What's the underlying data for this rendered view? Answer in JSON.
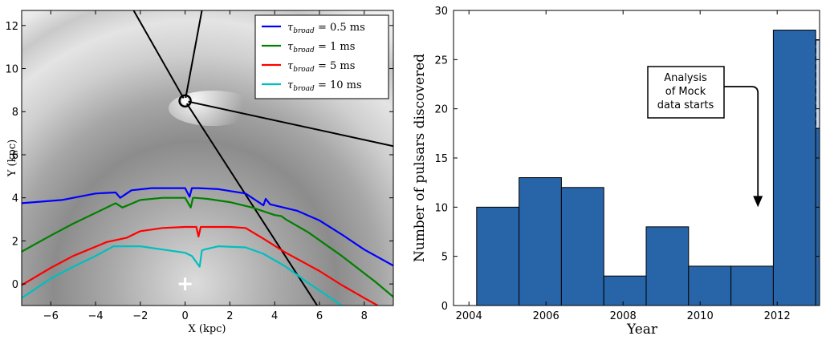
{
  "chart_data": [
    {
      "type": "line",
      "xlabel": "X (kpc)",
      "ylabel": "Y (kpc)",
      "xlim": [
        -7.3,
        9.3
      ],
      "ylim": [
        -1,
        12.7
      ],
      "xticks": [
        -6,
        -4,
        -2,
        0,
        2,
        4,
        6,
        8
      ],
      "yticks": [
        0,
        2,
        4,
        6,
        8,
        10,
        12
      ],
      "legend_position": "top-right",
      "background": "greyscale Galactic electron-density map",
      "sun_marker": {
        "x": 0,
        "y": 8.5
      },
      "galactic_centre_marker": {
        "x": 0,
        "y": 0
      },
      "sightlines": [
        {
          "from": [
            0,
            8.5
          ],
          "to": [
            -2.3,
            12.7
          ]
        },
        {
          "from": [
            0,
            8.5
          ],
          "to": [
            0.75,
            12.7
          ]
        },
        {
          "from": [
            0,
            8.5
          ],
          "to": [
            9.3,
            6.4
          ]
        },
        {
          "from": [
            0,
            8.5
          ],
          "to": [
            5.9,
            -1
          ]
        }
      ],
      "series": [
        {
          "name": "0.5 ms",
          "color": "#0000ff",
          "x": [
            -7.3,
            -5.5,
            -4.0,
            -3.1,
            -2.9,
            -2.4,
            -1.5,
            0.0,
            0.2,
            0.3,
            0.4,
            0.6,
            1.5,
            2.7,
            3.5,
            3.6,
            3.8,
            5.0,
            6.0,
            7.0,
            8.0,
            9.3
          ],
          "y": [
            3.75,
            3.9,
            4.2,
            4.25,
            4.0,
            4.35,
            4.45,
            4.45,
            4.05,
            4.45,
            4.45,
            4.45,
            4.4,
            4.2,
            3.65,
            3.95,
            3.7,
            3.4,
            2.95,
            2.3,
            1.6,
            0.85
          ]
        },
        {
          "name": "1 ms",
          "color": "#008000",
          "x": [
            -7.3,
            -6.0,
            -5.0,
            -3.5,
            -3.1,
            -2.8,
            -2.0,
            -1.0,
            0.0,
            0.25,
            0.35,
            0.45,
            1.0,
            2.0,
            3.0,
            4.0,
            4.3,
            4.5,
            5.5,
            7.0,
            8.5,
            9.3
          ],
          "y": [
            1.5,
            2.25,
            2.8,
            3.55,
            3.75,
            3.55,
            3.9,
            4.0,
            4.0,
            3.55,
            4.0,
            4.0,
            3.95,
            3.8,
            3.55,
            3.2,
            3.15,
            3.0,
            2.4,
            1.3,
            0.1,
            -0.6
          ]
        },
        {
          "name": "5 ms",
          "color": "#ff0000",
          "x": [
            -7.3,
            -6.0,
            -5.0,
            -3.5,
            -2.6,
            -2.0,
            -1.0,
            0.0,
            0.5,
            0.6,
            0.7,
            1.0,
            2.0,
            2.7,
            3.5,
            4.5,
            6.0,
            7.0,
            8.0,
            8.6
          ],
          "y": [
            -0.05,
            0.75,
            1.3,
            1.95,
            2.15,
            2.45,
            2.6,
            2.65,
            2.65,
            2.2,
            2.65,
            2.65,
            2.65,
            2.6,
            2.1,
            1.45,
            0.6,
            -0.05,
            -0.65,
            -1.0
          ]
        },
        {
          "name": "10 ms",
          "color": "#00bfbf",
          "x": [
            -7.3,
            -6.0,
            -5.0,
            -4.0,
            -3.2,
            -2.0,
            -1.0,
            0.0,
            0.3,
            0.65,
            0.75,
            0.85,
            1.5,
            2.7,
            3.5,
            4.5,
            5.5,
            6.5,
            7.0
          ],
          "y": [
            -0.65,
            0.25,
            0.8,
            1.3,
            1.75,
            1.75,
            1.6,
            1.45,
            1.3,
            0.8,
            1.55,
            1.6,
            1.75,
            1.7,
            1.4,
            0.8,
            0.05,
            -0.65,
            -1.0
          ]
        }
      ]
    },
    {
      "type": "bar",
      "xlabel": "Year",
      "ylabel": "Number of pulsars discovered",
      "xlim": [
        2003.6,
        2013.1
      ],
      "ylim": [
        0,
        30
      ],
      "xticks": [
        2004,
        2006,
        2008,
        2010,
        2012
      ],
      "yticks": [
        0,
        5,
        10,
        15,
        20,
        25,
        30
      ],
      "bin_width": 1.1,
      "bars": [
        {
          "x_start": 2004.2,
          "value": 10
        },
        {
          "x_start": 2005.3,
          "value": 13
        },
        {
          "x_start": 2006.4,
          "value": 12
        },
        {
          "x_start": 2007.5,
          "value": 3
        },
        {
          "x_start": 2008.6,
          "value": 8
        },
        {
          "x_start": 2009.7,
          "value": 4
        },
        {
          "x_start": 2010.8,
          "value": 4
        },
        {
          "x_start": 2011.9,
          "value": 28
        },
        {
          "x_start": 2013.0,
          "value": 18
        }
      ],
      "projected_bar": {
        "x_start": 2013.0,
        "from": 18,
        "to": 27
      },
      "bar_color": "#2864a8",
      "projected_color": "#c6d8ef",
      "annotation": {
        "text_lines": [
          "Analysis",
          "of Mock",
          "data starts"
        ],
        "arrow_x": 2011.5,
        "arrow_from": 23,
        "arrow_to": 10
      }
    }
  ],
  "legend": [
    {
      "symbol": "τ",
      "subscript": "broad",
      "value": " = 0.5 ms",
      "color": "#0000ff"
    },
    {
      "symbol": "τ",
      "subscript": "broad",
      "value": " = 1 ms",
      "color": "#008000"
    },
    {
      "symbol": "τ",
      "subscript": "broad",
      "value": " = 5 ms",
      "color": "#ff0000"
    },
    {
      "symbol": "τ",
      "subscript": "broad",
      "value": " = 10 ms",
      "color": "#00bfbf"
    }
  ]
}
